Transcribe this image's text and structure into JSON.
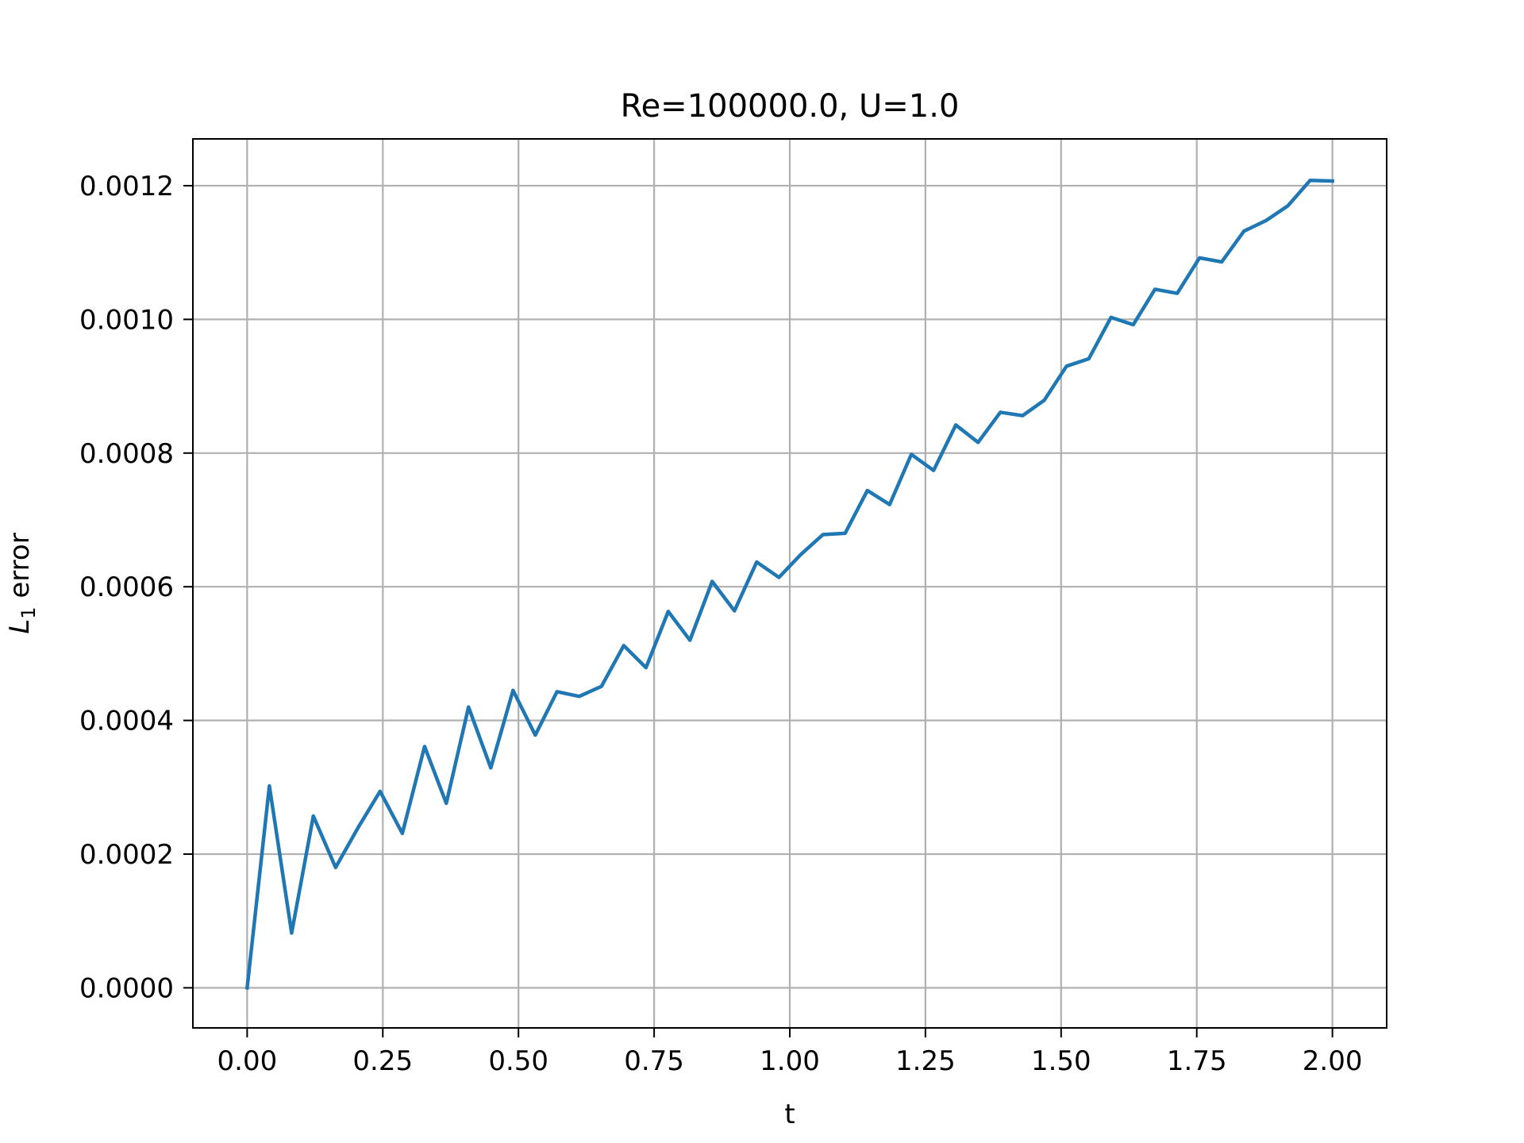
{
  "chart_data": {
    "type": "line",
    "title": "Re=100000.0, U=1.0",
    "xlabel": "t",
    "ylabel_main": "L",
    "ylabel_sub": "1",
    "ylabel_rest": " error",
    "xlim": [
      -0.1,
      2.1
    ],
    "ylim": [
      -6e-05,
      0.00127
    ],
    "xticks": [
      0.0,
      0.25,
      0.5,
      0.75,
      1.0,
      1.25,
      1.5,
      1.75,
      2.0
    ],
    "xtick_labels": [
      "0.00",
      "0.25",
      "0.50",
      "0.75",
      "1.00",
      "1.25",
      "1.50",
      "1.75",
      "2.00"
    ],
    "yticks": [
      0.0,
      0.0002,
      0.0004,
      0.0006,
      0.0008,
      0.001,
      0.0012
    ],
    "ytick_labels": [
      "0.0000",
      "0.0002",
      "0.0004",
      "0.0006",
      "0.0008",
      "0.0010",
      "0.0012"
    ],
    "grid": true,
    "line_color": "#1f77b4",
    "grid_color": "#b0b0b0",
    "series": [
      {
        "x": [
          0.0,
          0.041,
          0.082,
          0.122,
          0.163,
          0.204,
          0.245,
          0.286,
          0.327,
          0.367,
          0.408,
          0.449,
          0.49,
          0.531,
          0.571,
          0.612,
          0.653,
          0.694,
          0.735,
          0.776,
          0.816,
          0.857,
          0.898,
          0.939,
          0.98,
          1.02,
          1.061,
          1.102,
          1.143,
          1.184,
          1.224,
          1.265,
          1.306,
          1.347,
          1.388,
          1.429,
          1.469,
          1.51,
          1.551,
          1.592,
          1.633,
          1.673,
          1.714,
          1.755,
          1.796,
          1.837,
          1.878,
          1.918,
          1.959,
          2.0
        ],
        "y": [
          0.0,
          0.000302,
          8.2e-05,
          0.000257,
          0.00018,
          0.000239,
          0.000294,
          0.000231,
          0.000361,
          0.000276,
          0.00042,
          0.000329,
          0.000445,
          0.000378,
          0.000443,
          0.000436,
          0.000451,
          0.000512,
          0.000479,
          0.000563,
          0.00052,
          0.000608,
          0.000564,
          0.000637,
          0.000614,
          0.000648,
          0.000678,
          0.00068,
          0.000744,
          0.000723,
          0.000798,
          0.000774,
          0.000842,
          0.000816,
          0.000861,
          0.000856,
          0.000879,
          0.00093,
          0.000941,
          0.001003,
          0.000992,
          0.001045,
          0.001039,
          0.001092,
          0.001086,
          0.001132,
          0.001148,
          0.00117,
          0.001208,
          0.001207
        ]
      }
    ]
  }
}
